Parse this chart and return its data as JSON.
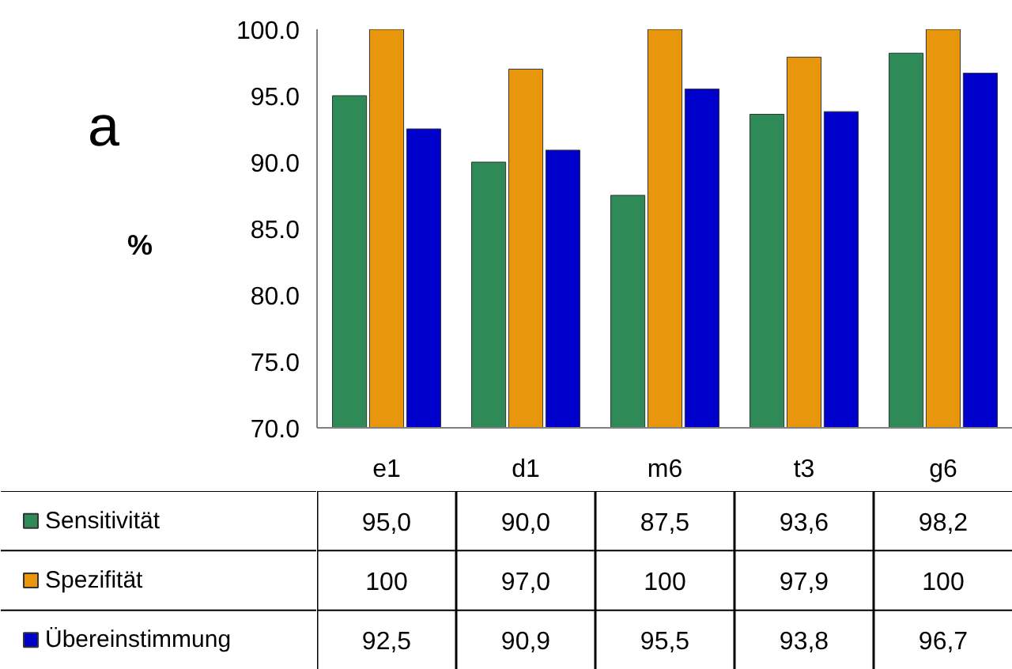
{
  "chart_data": {
    "type": "bar",
    "title": "a",
    "ylabel": "%",
    "categories": [
      "e1",
      "d1",
      "m6",
      "t3",
      "g6"
    ],
    "series": [
      {
        "name": "Sensitivität",
        "color": "#2e8b57",
        "values": [
          95.0,
          90.0,
          87.5,
          93.6,
          98.2
        ],
        "value_labels": [
          "95,0",
          "90,0",
          "87,5",
          "93,6",
          "98,2"
        ]
      },
      {
        "name": "Spezifität",
        "color": "#e8960c",
        "values": [
          100,
          97.0,
          100,
          97.9,
          100
        ],
        "value_labels": [
          "100",
          "97,0",
          "100",
          "97,9",
          "100"
        ]
      },
      {
        "name": "Übereinstimmung",
        "color": "#0000cc",
        "values": [
          92.5,
          90.9,
          95.5,
          93.8,
          96.7
        ],
        "value_labels": [
          "92,5",
          "90,9",
          "95,5",
          "93,8",
          "96,7"
        ]
      }
    ],
    "ylim": [
      70,
      100
    ],
    "yticks": [
      {
        "value": 70,
        "label": "70.0"
      },
      {
        "value": 75,
        "label": "75.0"
      },
      {
        "value": 80,
        "label": "80.0"
      },
      {
        "value": 85,
        "label": "85.0"
      },
      {
        "value": 90,
        "label": "90.0"
      },
      {
        "value": 95,
        "label": "95.0"
      },
      {
        "value": 100,
        "label": "100.0"
      }
    ],
    "legend": "bottom left"
  }
}
